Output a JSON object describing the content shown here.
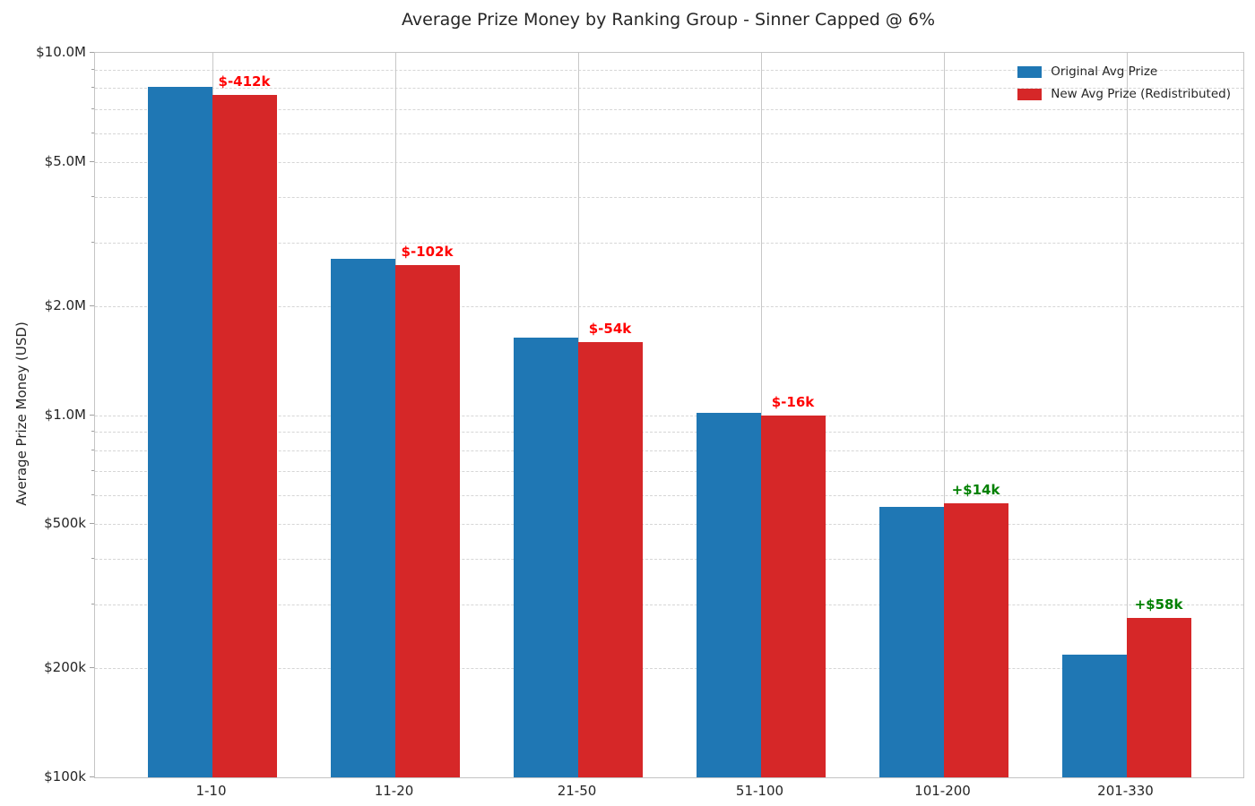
{
  "title": "Average Prize Money by Ranking Group - Sinner Capped @ 6%",
  "ylabel": "Average Prize Money (USD)",
  "palette": {
    "original_blue": "#1f77b4",
    "redistributed_red": "#d62728",
    "annotation_negative": "#ff0000",
    "annotation_positive": "#008000",
    "grid_dashed": "#d6d6d6",
    "grid_vertical": "#c8c8c8",
    "spine": "#c4c4c4",
    "text": "#262626"
  },
  "chart_data": {
    "type": "bar",
    "y_scale": "log",
    "ylim": [
      100000,
      10000000
    ],
    "grid": "both",
    "legend_position": "upper right",
    "categories": [
      "1-10",
      "11-20",
      "21-50",
      "51-100",
      "101-200",
      "201-330"
    ],
    "series": [
      {
        "name": "Original Avg Prize",
        "color": "#1f77b4",
        "values": [
          8070000,
          2700000,
          1640000,
          1013000,
          557000,
          218000
        ]
      },
      {
        "name": "New Avg Prize (Redistributed)",
        "color": "#d62728",
        "values": [
          7658000,
          2598000,
          1586000,
          997000,
          571000,
          276000
        ]
      }
    ],
    "annotations": [
      {
        "text": "$-412k",
        "color": "#ff0000"
      },
      {
        "text": "$-102k",
        "color": "#ff0000"
      },
      {
        "text": "$-54k",
        "color": "#ff0000"
      },
      {
        "text": "$-16k",
        "color": "#ff0000"
      },
      {
        "text": "+$14k",
        "color": "#008000"
      },
      {
        "text": "+$58k",
        "color": "#008000"
      }
    ],
    "y_ticks": [
      {
        "value": 10000000,
        "label": "$10.0M"
      },
      {
        "value": 5000000,
        "label": "$5.0M"
      },
      {
        "value": 2000000,
        "label": "$2.0M"
      },
      {
        "value": 1000000,
        "label": "$1.0M"
      },
      {
        "value": 500000,
        "label": "$500k"
      },
      {
        "value": 200000,
        "label": "$200k"
      },
      {
        "value": 100000,
        "label": "$100k"
      }
    ]
  }
}
